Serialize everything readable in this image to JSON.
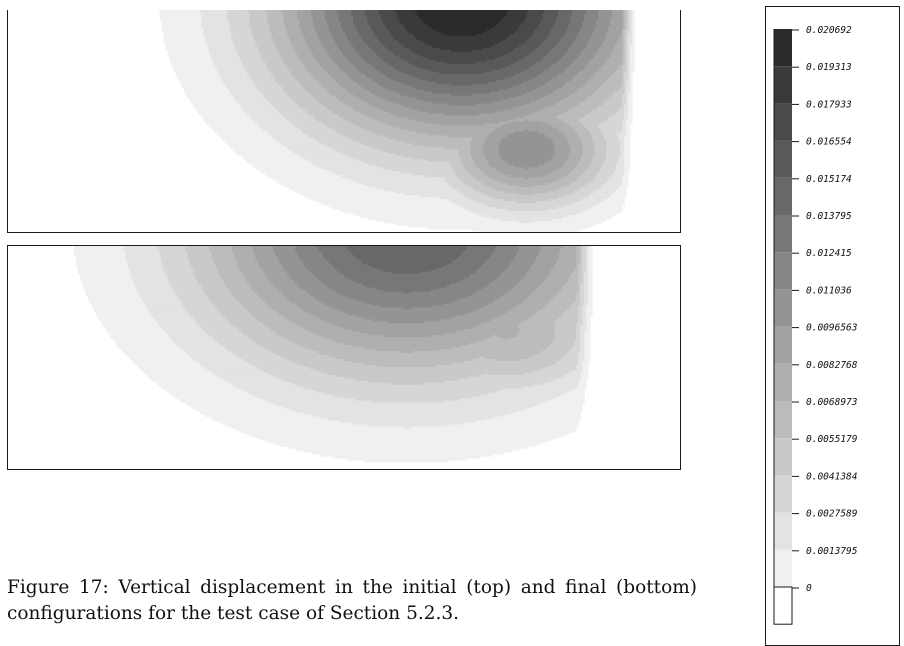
{
  "figure": {
    "caption": "Figure 17: Vertical displacement in the initial (top) and final (bottom) configurations for the test case of Section 5.2.3.",
    "panels": [
      {
        "label": "initial (top)"
      },
      {
        "label": "final (bottom)"
      }
    ],
    "colorbar": {
      "levels": [
        "0.020692",
        "0.019313",
        "0.017933",
        "0.016554",
        "0.015174",
        "0.013795",
        "0.012415",
        "0.011036",
        "0.0096563",
        "0.0082768",
        "0.0068973",
        "0.0055179",
        "0.0041384",
        "0.0027589",
        "0.0013795",
        "0"
      ],
      "colors": [
        "#2b2b2b",
        "#3a3a3a",
        "#4a4a4a",
        "#595959",
        "#686868",
        "#777777",
        "#868686",
        "#949494",
        "#a2a2a2",
        "#afafaf",
        "#bcbcbc",
        "#c9c9c9",
        "#d6d6d6",
        "#e3e3e3",
        "#f0f0f0",
        "#ffffff"
      ]
    }
  }
}
